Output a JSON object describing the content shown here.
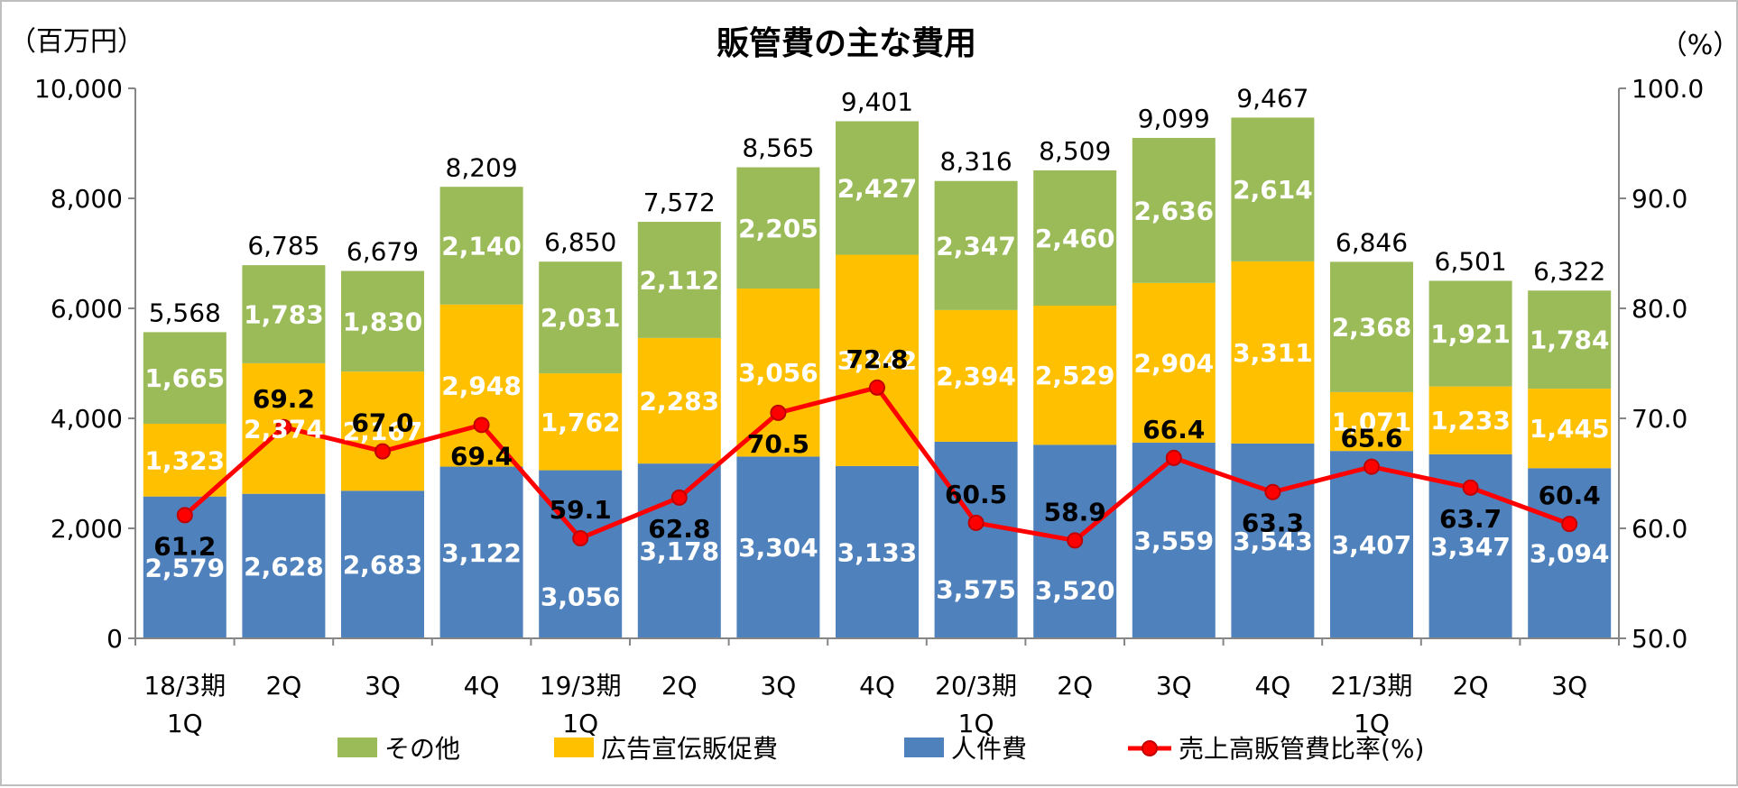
{
  "chart_data": {
    "type": "bar",
    "title": "販管費の主な費用",
    "left_axis_unit": "（百万円）",
    "right_axis_unit": "（%）",
    "ylim": [
      0,
      10000
    ],
    "y2lim": [
      50,
      100
    ],
    "y_ticks": [
      "0",
      "2,000",
      "4,000",
      "6,000",
      "8,000",
      "10,000"
    ],
    "y_tick_values": [
      0,
      2000,
      4000,
      6000,
      8000,
      10000
    ],
    "y2_ticks": [
      "50.0",
      "60.0",
      "70.0",
      "80.0",
      "90.0",
      "100.0"
    ],
    "y2_tick_values": [
      50,
      60,
      70,
      80,
      90,
      100
    ],
    "categories": [
      [
        "18/3期",
        "1Q"
      ],
      [
        "2Q"
      ],
      [
        "3Q"
      ],
      [
        "4Q"
      ],
      [
        "19/3期",
        "1Q"
      ],
      [
        "2Q"
      ],
      [
        "3Q"
      ],
      [
        "4Q"
      ],
      [
        "20/3期",
        "1Q"
      ],
      [
        "2Q"
      ],
      [
        "3Q"
      ],
      [
        "4Q"
      ],
      [
        "21/3期",
        "1Q"
      ],
      [
        "2Q"
      ],
      [
        "3Q"
      ]
    ],
    "series": [
      {
        "name": "人件費",
        "color": "#4f81bd",
        "values": [
          2579,
          2628,
          2683,
          3122,
          3056,
          3178,
          3304,
          3133,
          3575,
          3520,
          3559,
          3543,
          3407,
          3347,
          3094
        ],
        "labels": [
          "2,579",
          "2,628",
          "2,683",
          "3,122",
          "3,056",
          "3,178",
          "3,304",
          "3,133",
          "3,575",
          "3,520",
          "3,559",
          "3,543",
          "3,407",
          "3,347",
          "3,094"
        ]
      },
      {
        "name": "広告宣伝販促費",
        "color": "#ffc000",
        "values": [
          1323,
          2374,
          2167,
          2948,
          1762,
          2283,
          3056,
          3842,
          2394,
          2529,
          2904,
          3311,
          1071,
          1233,
          1445
        ],
        "labels": [
          "1,323",
          "2,374",
          "2,167",
          "2,948",
          "1,762",
          "2,283",
          "3,056",
          "3,842",
          "2,394",
          "2,529",
          "2,904",
          "3,311",
          "1,071",
          "1,233",
          "1,445"
        ]
      },
      {
        "name": "その他",
        "color": "#9bbb59",
        "values": [
          1665,
          1783,
          1830,
          2140,
          2031,
          2112,
          2205,
          2427,
          2347,
          2460,
          2636,
          2614,
          2368,
          1921,
          1784
        ],
        "labels": [
          "1,665",
          "1,783",
          "1,830",
          "2,140",
          "2,031",
          "2,112",
          "2,205",
          "2,427",
          "2,347",
          "2,460",
          "2,636",
          "2,614",
          "2,368",
          "1,921",
          "1,784"
        ]
      }
    ],
    "totals": [
      5568,
      6785,
      6679,
      8209,
      6850,
      7572,
      8565,
      9401,
      8316,
      8509,
      9099,
      9467,
      6846,
      6501,
      6322
    ],
    "total_labels": [
      "5,568",
      "6,785",
      "6,679",
      "8,209",
      "6,850",
      "7,572",
      "8,565",
      "9,401",
      "8,316",
      "8,509",
      "9,099",
      "9,467",
      "6,846",
      "6,501",
      "6,322"
    ],
    "line_series": {
      "name": "売上高販管費比率(%)",
      "color": "#ff0000",
      "axis": "right",
      "values": [
        61.2,
        69.2,
        67.0,
        69.4,
        59.1,
        62.8,
        70.5,
        72.8,
        60.5,
        58.9,
        66.4,
        63.3,
        65.6,
        63.7,
        60.4
      ],
      "labels": [
        "61.2",
        "69.2",
        "67.0",
        "69.4",
        "59.1",
        "62.8",
        "70.5",
        "72.8",
        "60.5",
        "58.9",
        "66.4",
        "63.3",
        "65.6",
        "63.7",
        "60.4"
      ]
    },
    "legend": {
      "position": "bottom",
      "items": [
        {
          "label": "その他",
          "color": "#9bbb59",
          "kind": "box"
        },
        {
          "label": "広告宣伝販促費",
          "color": "#ffc000",
          "kind": "box"
        },
        {
          "label": "人件費",
          "color": "#4f81bd",
          "kind": "box"
        },
        {
          "label": "売上高販管費比率(%)",
          "color": "#ff0000",
          "kind": "line"
        }
      ]
    }
  }
}
